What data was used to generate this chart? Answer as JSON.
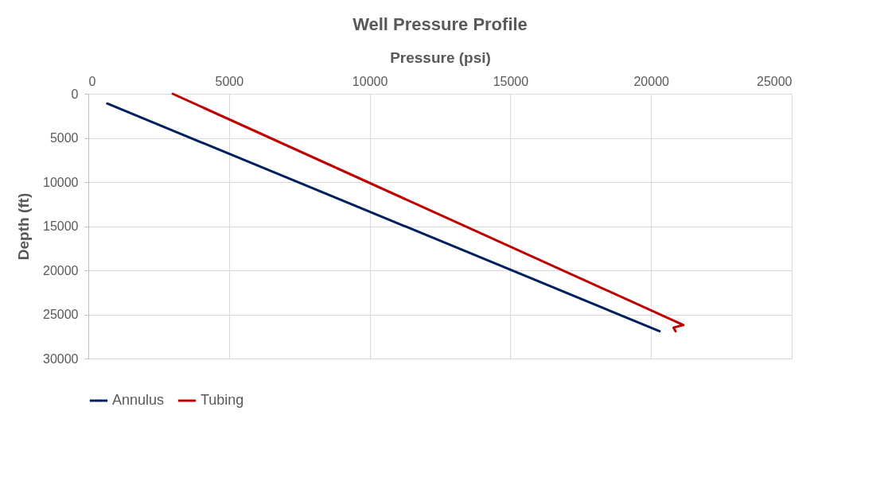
{
  "chart_data": {
    "type": "line",
    "title": "Well Pressure Profile",
    "xlabel": "Pressure (psi)",
    "ylabel": "Depth (ft)",
    "xlim": [
      0,
      25000
    ],
    "xticks": [
      0,
      5000,
      10000,
      15000,
      20000,
      25000
    ],
    "ylim": [
      30000,
      0
    ],
    "yticks": [
      0,
      5000,
      10000,
      15000,
      20000,
      25000,
      30000
    ],
    "grid": true,
    "legend": "bottom",
    "series": [
      {
        "name": "Annulus",
        "color": "#002060",
        "x": [
          670,
          20300
        ],
        "values": [
          1100,
          26900
        ]
      },
      {
        "name": "Tubing",
        "color": "#c00000",
        "x": [
          3000,
          21150,
          20800,
          20870
        ],
        "values": [
          0,
          26200,
          26500,
          26900
        ]
      }
    ]
  }
}
